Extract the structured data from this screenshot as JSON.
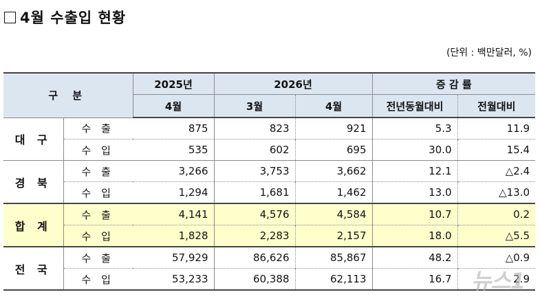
{
  "title": "4월 수출입 현황",
  "unit": "(단위 : 백만달러, %)",
  "header": {
    "category": "구 분",
    "y2025": "2025년",
    "y2026": "2026년",
    "growth": "증 감 률",
    "m_2025_apr": "4월",
    "m_2026_mar": "3월",
    "m_2026_apr": "4월",
    "yoy": "전년동월대비",
    "mom": "전월대비"
  },
  "rows": [
    {
      "region": "대 구",
      "export": {
        "kind": "수 출",
        "v2025_4": "875",
        "v2026_3": "823",
        "v2026_4": "921",
        "yoy": "5.3",
        "mom": "11.9"
      },
      "import": {
        "kind": "수 입",
        "v2025_4": "535",
        "v2026_3": "602",
        "v2026_4": "695",
        "yoy": "30.0",
        "mom": "15.4"
      }
    },
    {
      "region": "경 북",
      "export": {
        "kind": "수 출",
        "v2025_4": "3,266",
        "v2026_3": "3,753",
        "v2026_4": "3,662",
        "yoy": "12.1",
        "mom": "△2.4"
      },
      "import": {
        "kind": "수 입",
        "v2025_4": "1,294",
        "v2026_3": "1,681",
        "v2026_4": "1,462",
        "yoy": "13.0",
        "mom": "△13.0"
      }
    },
    {
      "region": "합 계",
      "export": {
        "kind": "수 출",
        "v2025_4": "4,141",
        "v2026_3": "4,576",
        "v2026_4": "4,584",
        "yoy": "10.7",
        "mom": "0.2"
      },
      "import": {
        "kind": "수 입",
        "v2025_4": "1,828",
        "v2026_3": "2,283",
        "v2026_4": "2,157",
        "yoy": "18.0",
        "mom": "△5.5"
      }
    },
    {
      "region": "전 국",
      "export": {
        "kind": "수 출",
        "v2025_4": "57,929",
        "v2026_3": "86,626",
        "v2026_4": "85,867",
        "yoy": "48.2",
        "mom": "△0.9"
      },
      "import": {
        "kind": "수 입",
        "v2025_4": "53,233",
        "v2026_3": "60,388",
        "v2026_4": "62,113",
        "yoy": "16.7",
        "mom": "2.9"
      }
    }
  ],
  "watermark": "뉴스1",
  "colors": {
    "header_bg": "#dce6f1",
    "highlight_bg": "#ffffcc"
  }
}
